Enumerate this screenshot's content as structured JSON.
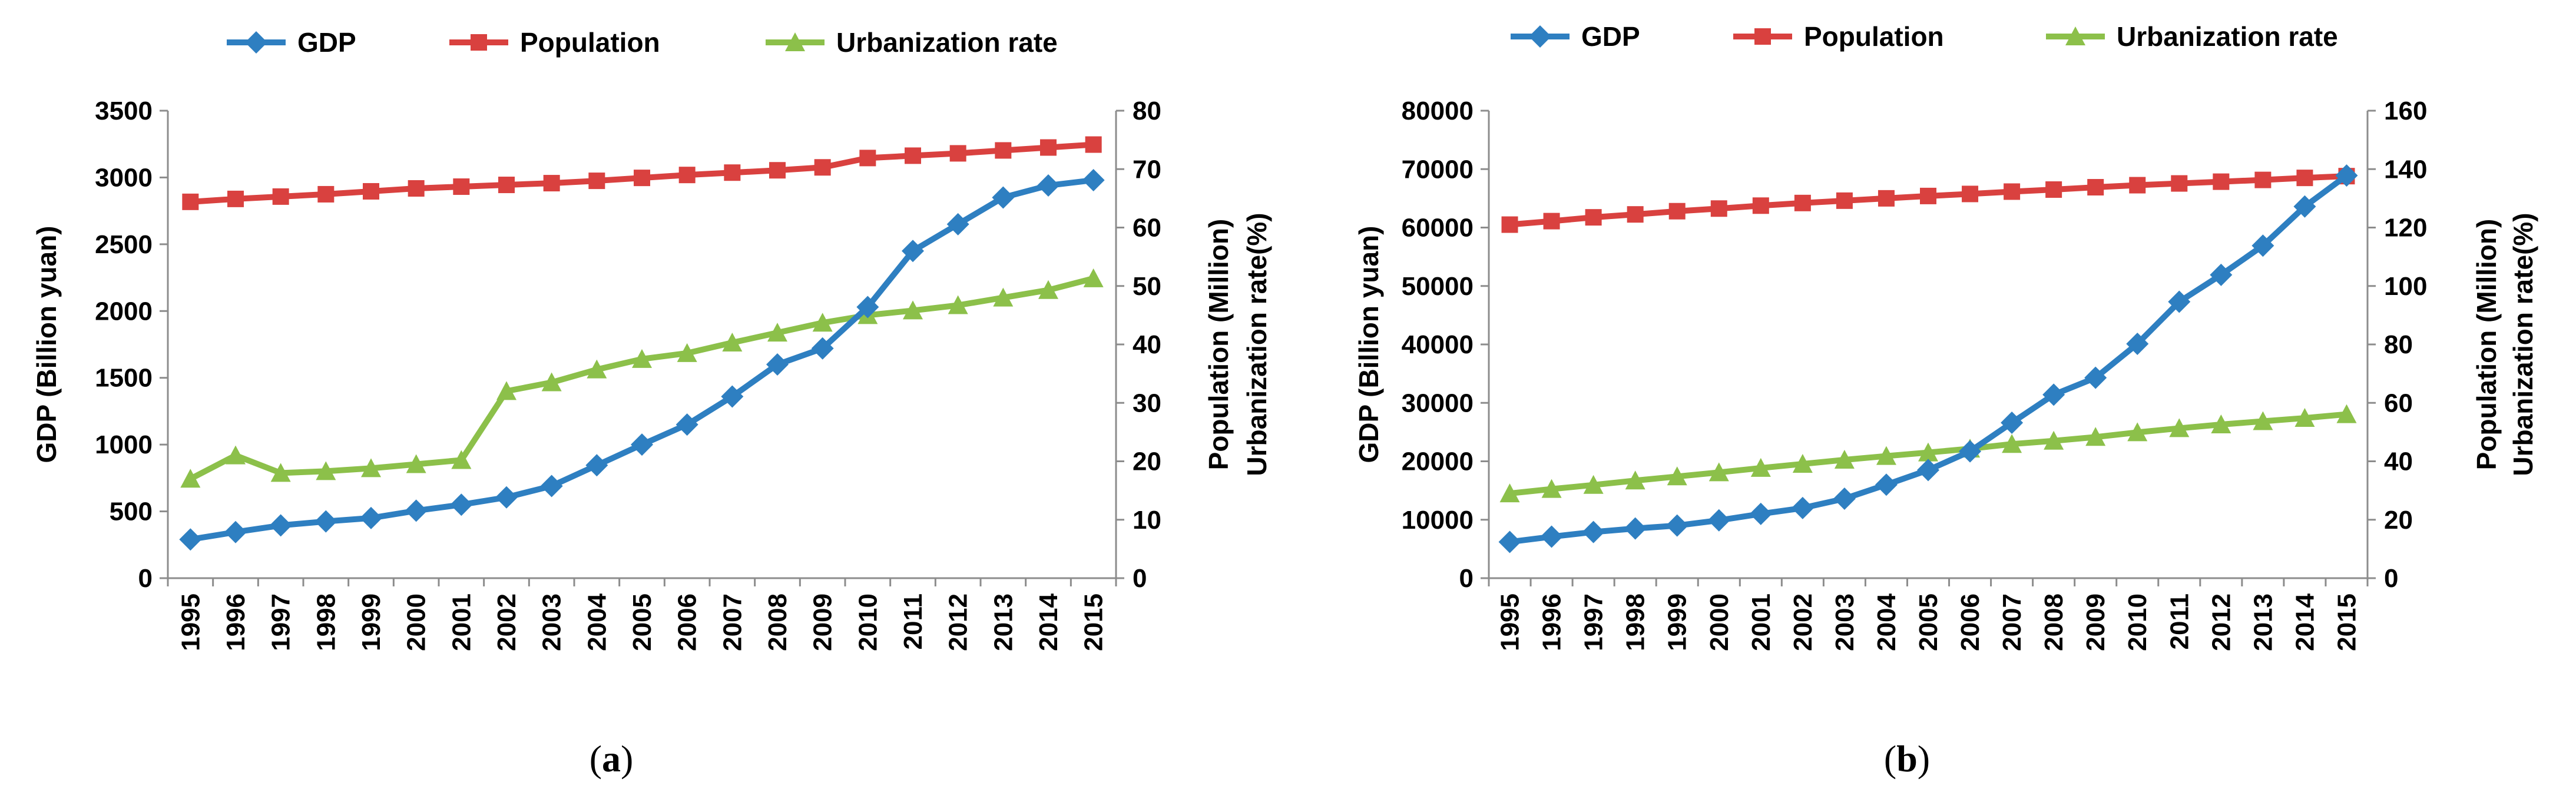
{
  "chart_data": [
    {
      "type": "line",
      "caption_pre": "(",
      "caption_letter": "a",
      "caption_post": ")",
      "categories": [
        "1995",
        "1996",
        "1997",
        "1998",
        "1999",
        "2000",
        "2001",
        "2002",
        "2003",
        "2004",
        "2005",
        "2006",
        "2007",
        "2008",
        "2009",
        "2010",
        "2011",
        "2012",
        "2013",
        "2014",
        "2015"
      ],
      "ylabel": "GDP (Billion yuan)",
      "y2label_line1": "Population (Million)",
      "y2label_line2": "Urbanization rate(%)",
      "ylim": [
        0,
        3500
      ],
      "yticks": [
        0,
        500,
        1000,
        1500,
        2000,
        2500,
        3000,
        3500
      ],
      "y2lim": [
        0,
        80
      ],
      "y2ticks": [
        0,
        10,
        20,
        30,
        40,
        50,
        60,
        70,
        80
      ],
      "series": [
        {
          "name": "GDP",
          "axis": "left",
          "marker": "diamond",
          "color": "#2e7fc1",
          "values": [
            290,
            345,
            395,
            425,
            450,
            505,
            550,
            605,
            690,
            845,
            1000,
            1150,
            1360,
            1600,
            1720,
            2030,
            2450,
            2650,
            2850,
            2940,
            2980
          ]
        },
        {
          "name": "Population",
          "axis": "right",
          "marker": "square",
          "color": "#d9413f",
          "values": [
            64.4,
            64.9,
            65.3,
            65.7,
            66.2,
            66.7,
            67.0,
            67.3,
            67.6,
            68.0,
            68.5,
            69.0,
            69.4,
            69.8,
            70.3,
            71.9,
            72.3,
            72.7,
            73.2,
            73.7,
            74.2
          ]
        },
        {
          "name": "Urbanization rate",
          "axis": "right",
          "marker": "triangle",
          "color": "#8cc04a",
          "values": [
            17.0,
            21.0,
            18.0,
            18.3,
            18.8,
            19.5,
            20.2,
            32.0,
            33.5,
            35.7,
            37.5,
            38.5,
            40.3,
            42.0,
            43.7,
            45.0,
            45.8,
            46.7,
            48.0,
            49.3,
            51.3
          ]
        }
      ]
    },
    {
      "type": "line",
      "caption_pre": "(",
      "caption_letter": "b",
      "caption_post": ")",
      "categories": [
        "1995",
        "1996",
        "1997",
        "1998",
        "1999",
        "2000",
        "2001",
        "2002",
        "2003",
        "2004",
        "2005",
        "2006",
        "2007",
        "2008",
        "2009",
        "2010",
        "2011",
        "2012",
        "2013",
        "2014",
        "2015"
      ],
      "ylabel": "GDP (Billion yuan)",
      "y2label_line1": "Population (Million)",
      "y2label_line2": "Urbanization rate(%)",
      "ylim": [
        0,
        80000
      ],
      "yticks": [
        0,
        10000,
        20000,
        30000,
        40000,
        50000,
        60000,
        70000,
        80000
      ],
      "y2lim": [
        0,
        160
      ],
      "y2ticks": [
        0,
        20,
        40,
        60,
        80,
        100,
        120,
        140,
        160
      ],
      "series": [
        {
          "name": "GDP",
          "axis": "left",
          "marker": "diamond",
          "color": "#2e7fc1",
          "values": [
            6200,
            7100,
            7900,
            8500,
            9000,
            9900,
            11000,
            12000,
            13600,
            16000,
            18500,
            21700,
            26600,
            31400,
            34300,
            40100,
            47300,
            51900,
            56900,
            63600,
            68900
          ]
        },
        {
          "name": "Population",
          "axis": "right",
          "marker": "square",
          "color": "#d9413f",
          "values": [
            121.0,
            122.2,
            123.5,
            124.5,
            125.6,
            126.5,
            127.5,
            128.4,
            129.2,
            130.0,
            130.8,
            131.5,
            132.3,
            133.0,
            133.8,
            134.5,
            135.1,
            135.7,
            136.3,
            137.0,
            137.6
          ]
        },
        {
          "name": "Urbanization rate",
          "axis": "right",
          "marker": "triangle",
          "color": "#8cc04a",
          "values": [
            29.0,
            30.5,
            31.9,
            33.4,
            34.8,
            36.2,
            37.7,
            39.1,
            40.5,
            41.8,
            43.0,
            44.3,
            45.9,
            47.0,
            48.3,
            49.9,
            51.3,
            52.6,
            53.7,
            54.8,
            56.1
          ]
        }
      ]
    }
  ]
}
